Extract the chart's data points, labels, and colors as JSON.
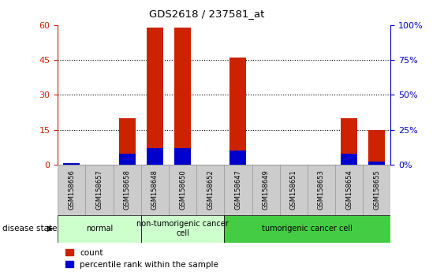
{
  "title": "GDS2618 / 237581_at",
  "samples": [
    "GSM158656",
    "GSM158657",
    "GSM158658",
    "GSM158648",
    "GSM158650",
    "GSM158652",
    "GSM158647",
    "GSM158649",
    "GSM158651",
    "GSM158653",
    "GSM158654",
    "GSM158655"
  ],
  "count_values": [
    0,
    0,
    20,
    59,
    59,
    0,
    46,
    0,
    0,
    0,
    20,
    15
  ],
  "percentile_values": [
    1,
    0,
    8,
    12,
    12,
    0,
    10,
    0,
    0,
    0,
    8,
    2
  ],
  "groups": [
    {
      "label": "normal",
      "start": 0,
      "end": 3,
      "color": "#ccffcc"
    },
    {
      "label": "non-tumorigenic cancer\ncell",
      "start": 3,
      "end": 6,
      "color": "#ccffcc"
    },
    {
      "label": "tumorigenic cancer cell",
      "start": 6,
      "end": 12,
      "color": "#55dd55"
    }
  ],
  "ylim_left": [
    0,
    60
  ],
  "ylim_right": [
    0,
    100
  ],
  "yticks_left": [
    0,
    15,
    30,
    45,
    60
  ],
  "yticks_right": [
    0,
    25,
    50,
    75,
    100
  ],
  "bar_color": "#cc2200",
  "percentile_color": "#0000cc",
  "axis_color_left": "#cc2200",
  "axis_color_right": "#0000cc",
  "disease_state_label": "disease state",
  "legend_count": "count",
  "legend_percentile": "percentile rank within the sample",
  "tick_bg_color": "#cccccc",
  "normal_color": "#ccffcc",
  "nontumor_color": "#ccffcc",
  "tumor_color": "#44cc44"
}
